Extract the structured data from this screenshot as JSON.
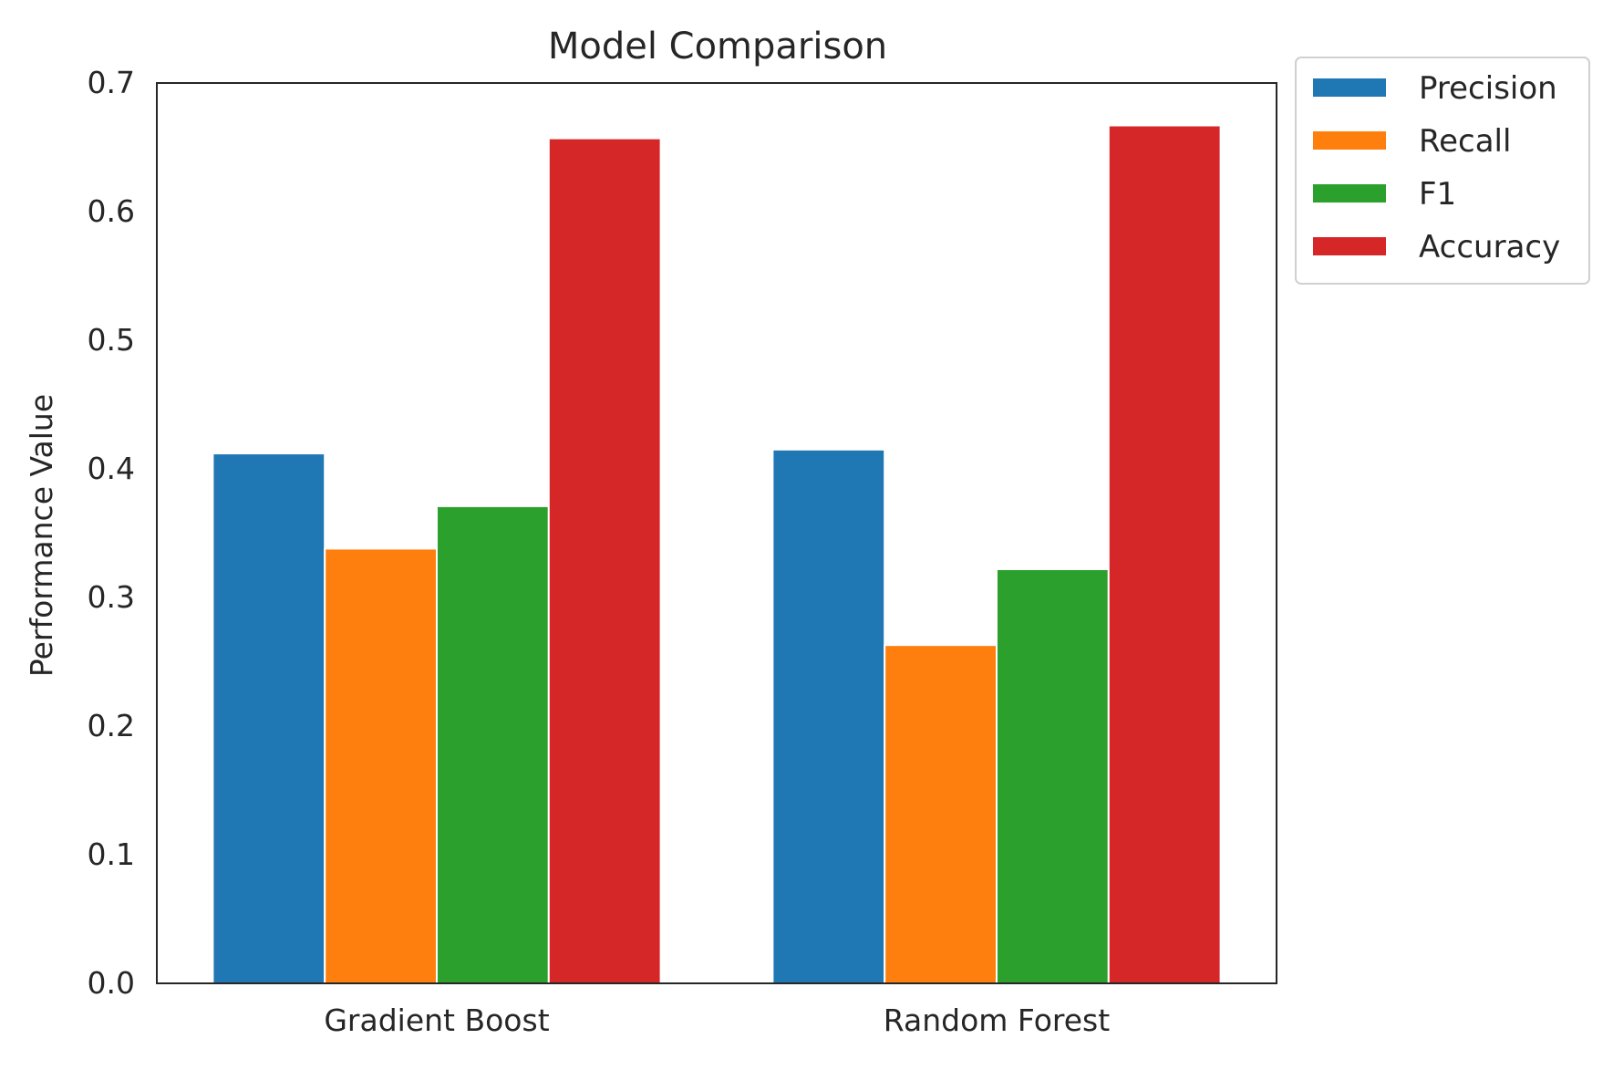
{
  "chart_data": {
    "type": "bar",
    "title": "Model Comparison",
    "xlabel": "",
    "ylabel": "Performance Value",
    "categories": [
      "Gradient Boost",
      "Random Forest"
    ],
    "series": [
      {
        "name": "Precision",
        "color": "#1f77b4",
        "values": [
          0.412,
          0.415
        ]
      },
      {
        "name": "Recall",
        "color": "#ff7f0e",
        "values": [
          0.338,
          0.263
        ]
      },
      {
        "name": "F1",
        "color": "#2ca02c",
        "values": [
          0.371,
          0.322
        ]
      },
      {
        "name": "Accuracy",
        "color": "#d62728",
        "values": [
          0.657,
          0.667
        ]
      }
    ],
    "ylim": [
      0,
      0.7
    ],
    "yticks": [
      "0.0",
      "0.1",
      "0.2",
      "0.3",
      "0.4",
      "0.5",
      "0.6",
      "0.7"
    ],
    "grid": false,
    "legend_position": "outside-top-right"
  }
}
